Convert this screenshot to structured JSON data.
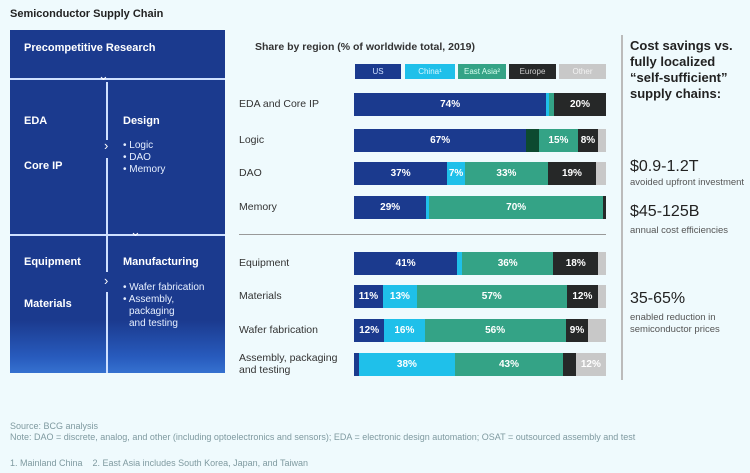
{
  "title": "Semiconductor Supply Chain",
  "panel": {
    "research": "Precompetitive Research",
    "eda": "EDA",
    "core_ip": "Core IP",
    "design": "Design",
    "design_items": [
      "• Logic",
      "• DAO",
      "• Memory"
    ],
    "equipment": "Equipment",
    "materials": "Materials",
    "manufacturing": "Manufacturing",
    "mfg_items": [
      "• Wafer fabrication",
      "• Assembly,",
      "packaging",
      "and testing"
    ]
  },
  "chart_data": {
    "type": "bar",
    "orientation": "horizontal",
    "stacked": true,
    "title": "Share by region (% of worldwide total, 2019)",
    "series_names": [
      "US",
      "China¹",
      "East Asia²",
      "Europe",
      "Other"
    ],
    "colors": [
      "#1b3a8e",
      "#1fc0ea",
      "#34a386",
      "#262828",
      "#c8c8c8"
    ],
    "categories": [
      "EDA and Core IP",
      "Logic",
      "DAO",
      "Memory",
      "Equipment",
      "Materials",
      "Wafer fabrication",
      "Assembly, packaging and testing"
    ],
    "rows": [
      {
        "values": [
          74,
          1,
          2,
          20,
          0
        ],
        "labels": [
          "74%",
          "",
          "",
          "20%",
          ""
        ]
      },
      {
        "values": [
          67,
          5,
          15,
          8,
          3
        ],
        "labels": [
          "67%",
          "",
          "15%",
          "8%",
          ""
        ],
        "colors_override": {
          "1": "#0d4a30"
        }
      },
      {
        "values": [
          37,
          7,
          33,
          19,
          4
        ],
        "labels": [
          "37%",
          "7%",
          "33%",
          "19%",
          ""
        ]
      },
      {
        "values": [
          29,
          1,
          70,
          1,
          0
        ],
        "labels": [
          "29%",
          "",
          "70%",
          "",
          ""
        ]
      },
      {
        "values": [
          41,
          2,
          36,
          18,
          3
        ],
        "labels": [
          "41%",
          "",
          "36%",
          "18%",
          ""
        ]
      },
      {
        "values": [
          11,
          13,
          57,
          12,
          3
        ],
        "labels": [
          "11%",
          "13%",
          "57%",
          "12%",
          ""
        ]
      },
      {
        "values": [
          12,
          16,
          56,
          9,
          7
        ],
        "labels": [
          "12%",
          "16%",
          "56%",
          "9%",
          ""
        ]
      },
      {
        "values": [
          2,
          38,
          43,
          5,
          12
        ],
        "labels": [
          "",
          "38%",
          "43%",
          "",
          "12%"
        ]
      }
    ]
  },
  "right": {
    "heading": "Cost savings vs. fully localized “self-sufficient” supply chains:",
    "stats": [
      {
        "value": "$0.9-1.2T",
        "desc": "avoided upfront investment"
      },
      {
        "value": "$45-125B",
        "desc": "annual cost efficiencies"
      },
      {
        "value": "35-65%",
        "desc": "enabled reduction in semiconductor prices"
      }
    ]
  },
  "footer": [
    "Source: BCG analysis",
    "Note: DAO = discrete, analog, and other (including optoelectronics and sensors); EDA = electronic design automation; OSAT = outsourced assembly and test",
    "1. Mainland China    2. East Asia includes South Korea, Japan, and Taiwan"
  ]
}
